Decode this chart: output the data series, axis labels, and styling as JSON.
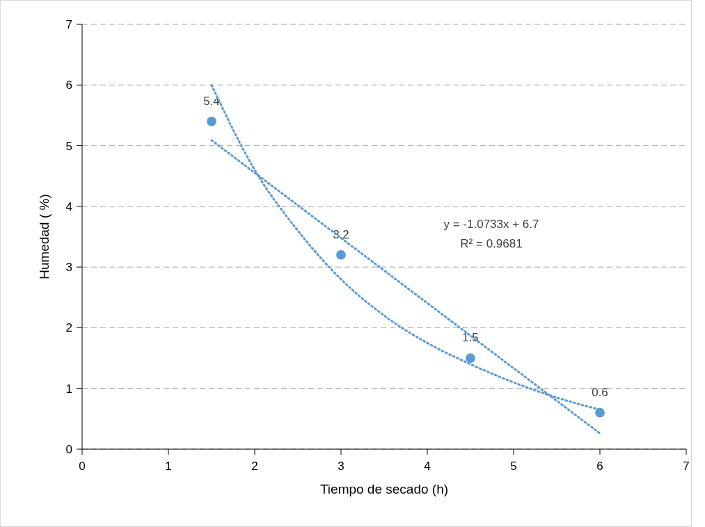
{
  "chart_data": {
    "type": "scatter",
    "xlabel": "Tiempo de secado (h)",
    "ylabel": "Humedad ( %)",
    "xlim": [
      0,
      7
    ],
    "ylim": [
      0,
      7
    ],
    "xticks": [
      0,
      1,
      2,
      3,
      4,
      5,
      6,
      7
    ],
    "yticks": [
      0,
      1,
      2,
      3,
      4,
      5,
      6,
      7
    ],
    "grid": "y",
    "series": [
      {
        "color": "#5b9bd5",
        "marker": "circle",
        "x": [
          1.5,
          3,
          4.5,
          6
        ],
        "values": [
          5.4,
          3.2,
          1.5,
          0.6
        ],
        "value_labels": [
          "5.4",
          "3.2",
          "1.5",
          "0.6"
        ]
      },
      {
        "type": "line",
        "color": "#5b9bd5",
        "line_style": "dotted",
        "x": [
          1.5,
          6
        ],
        "values": [
          5.09,
          0.26
        ]
      },
      {
        "type": "line",
        "color": "#5b9bd5",
        "line_style": "dotted",
        "x": [
          1.5,
          2,
          2.5,
          3,
          3.5,
          4,
          4.5,
          5,
          5.5,
          6
        ],
        "values": [
          6.0,
          4.6,
          3.6,
          2.8,
          2.2,
          1.75,
          1.4,
          1.1,
          0.85,
          0.65
        ]
      }
    ],
    "annotations": [
      "y = -1.0733x + 6.7",
      "R² = 0.9681"
    ]
  }
}
